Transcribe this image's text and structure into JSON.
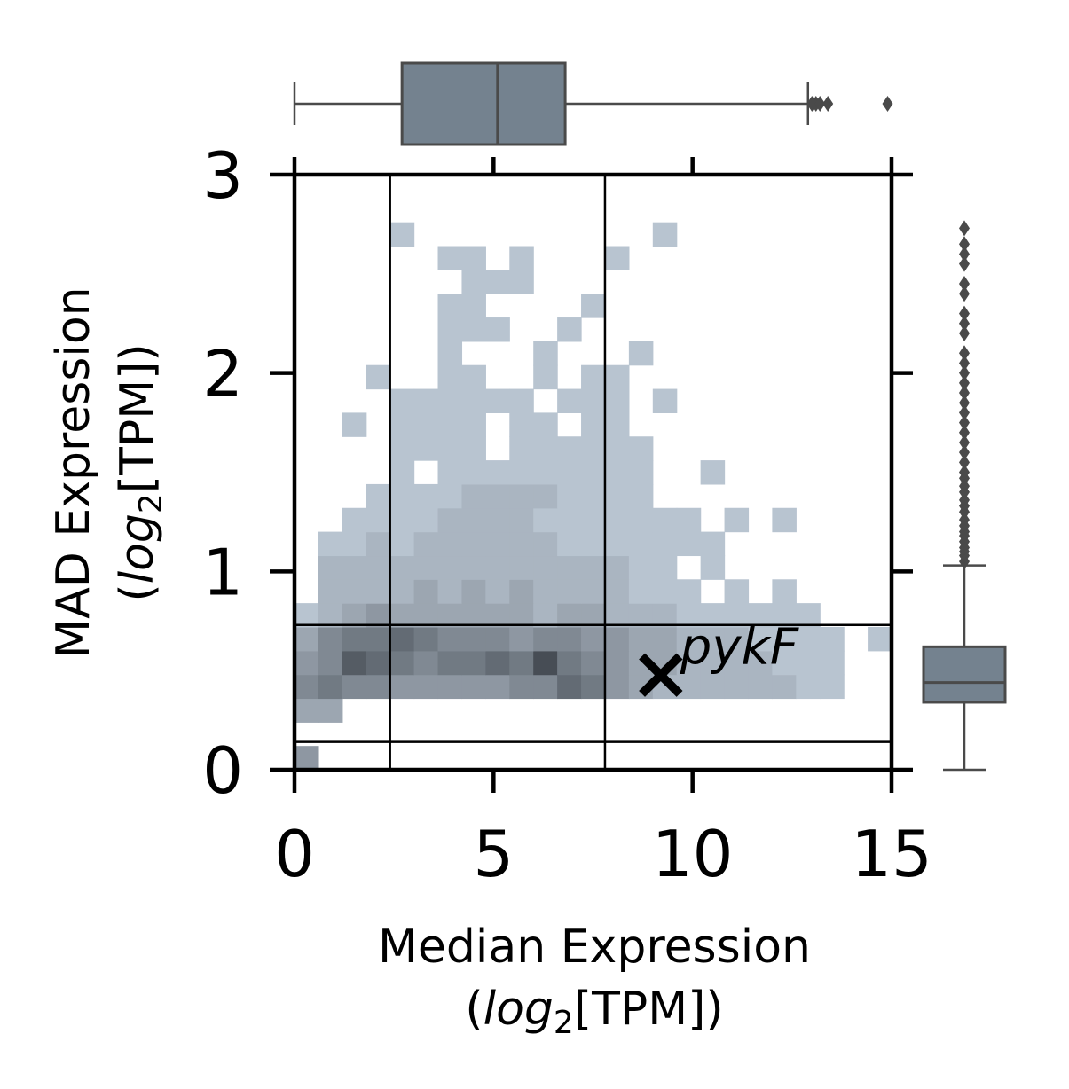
{
  "chart_data": {
    "type": "heatmap",
    "kind": "joint 2D histogram with marginal box plots",
    "title": "",
    "xlabel": {
      "line1": "Median Expression",
      "line2_prefix": "(",
      "line2_italic": "log",
      "line2_sub": "2",
      "line2_suffix": "[TPM])"
    },
    "ylabel": {
      "line1": "MAD Expression",
      "line2_prefix": "(",
      "line2_italic": "log",
      "line2_sub": "2",
      "line2_suffix": "[TPM])"
    },
    "xlim": [
      0,
      15
    ],
    "ylim": [
      0,
      3
    ],
    "xticks": [
      0,
      5,
      10,
      15
    ],
    "xtick_labels": [
      "0",
      "5",
      "10",
      "15"
    ],
    "yticks": [
      0,
      1,
      2,
      3
    ],
    "ytick_labels": [
      "0",
      "1",
      "2",
      "3"
    ],
    "grid": false,
    "colors": {
      "bin_light": "#b8c4d0",
      "bin_dark": "#474d55",
      "box": "#74828f",
      "box_edge": "#4a4a4a",
      "lines": "#000000"
    },
    "bins": {
      "x_width": 0.6,
      "y_width": 0.12,
      "note_levels": "count level 1 (lightest) .. 9 (darkest)",
      "cells": [
        [
          0.0,
          0.0,
          4
        ],
        [
          0.0,
          0.24,
          3
        ],
        [
          0.6,
          0.24,
          3
        ],
        [
          0.0,
          0.36,
          5
        ],
        [
          0.6,
          0.36,
          6
        ],
        [
          1.2,
          0.36,
          5
        ],
        [
          1.8,
          0.36,
          5
        ],
        [
          2.4,
          0.36,
          4
        ],
        [
          3.0,
          0.36,
          4
        ],
        [
          3.6,
          0.36,
          4
        ],
        [
          4.2,
          0.36,
          4
        ],
        [
          4.8,
          0.36,
          4
        ],
        [
          5.4,
          0.36,
          5
        ],
        [
          6.0,
          0.36,
          5
        ],
        [
          6.6,
          0.36,
          7
        ],
        [
          7.2,
          0.36,
          6
        ],
        [
          7.8,
          0.36,
          4
        ],
        [
          8.4,
          0.36,
          3
        ],
        [
          9.0,
          0.36,
          2
        ],
        [
          9.6,
          0.36,
          2
        ],
        [
          10.2,
          0.36,
          2
        ],
        [
          10.8,
          0.36,
          2
        ],
        [
          11.4,
          0.36,
          2
        ],
        [
          12.0,
          0.36,
          2
        ],
        [
          12.6,
          0.36,
          1
        ],
        [
          13.2,
          0.36,
          1
        ],
        [
          0.0,
          0.48,
          4
        ],
        [
          0.6,
          0.48,
          5
        ],
        [
          1.2,
          0.48,
          8
        ],
        [
          1.8,
          0.48,
          7
        ],
        [
          2.4,
          0.48,
          6
        ],
        [
          3.0,
          0.48,
          5
        ],
        [
          3.6,
          0.48,
          6
        ],
        [
          4.2,
          0.48,
          6
        ],
        [
          4.8,
          0.48,
          7
        ],
        [
          5.4,
          0.48,
          6
        ],
        [
          6.0,
          0.48,
          9
        ],
        [
          6.6,
          0.48,
          6
        ],
        [
          7.2,
          0.48,
          5
        ],
        [
          7.8,
          0.48,
          4
        ],
        [
          8.4,
          0.48,
          3
        ],
        [
          9.0,
          0.48,
          3
        ],
        [
          9.6,
          0.48,
          2
        ],
        [
          10.2,
          0.48,
          2
        ],
        [
          10.8,
          0.48,
          2
        ],
        [
          11.4,
          0.48,
          2
        ],
        [
          12.0,
          0.48,
          1
        ],
        [
          12.6,
          0.48,
          1
        ],
        [
          13.2,
          0.48,
          1
        ],
        [
          0.0,
          0.6,
          3
        ],
        [
          0.6,
          0.6,
          5
        ],
        [
          1.2,
          0.6,
          6
        ],
        [
          1.8,
          0.6,
          6
        ],
        [
          2.4,
          0.6,
          7
        ],
        [
          3.0,
          0.6,
          6
        ],
        [
          3.6,
          0.6,
          5
        ],
        [
          4.2,
          0.6,
          5
        ],
        [
          4.8,
          0.6,
          5
        ],
        [
          5.4,
          0.6,
          4
        ],
        [
          6.0,
          0.6,
          5
        ],
        [
          6.6,
          0.6,
          5
        ],
        [
          7.2,
          0.6,
          4
        ],
        [
          7.8,
          0.6,
          4
        ],
        [
          8.4,
          0.6,
          3
        ],
        [
          9.0,
          0.6,
          3
        ],
        [
          9.6,
          0.6,
          2
        ],
        [
          10.2,
          0.6,
          2
        ],
        [
          10.8,
          0.6,
          2
        ],
        [
          11.4,
          0.6,
          1
        ],
        [
          12.0,
          0.6,
          1
        ],
        [
          12.6,
          0.6,
          1
        ],
        [
          13.2,
          0.6,
          1
        ],
        [
          14.4,
          0.6,
          1
        ],
        [
          0.0,
          0.72,
          1
        ],
        [
          0.6,
          0.72,
          2
        ],
        [
          1.2,
          0.72,
          3
        ],
        [
          1.8,
          0.72,
          4
        ],
        [
          2.4,
          0.72,
          3
        ],
        [
          3.0,
          0.72,
          3
        ],
        [
          3.6,
          0.72,
          3
        ],
        [
          4.2,
          0.72,
          3
        ],
        [
          4.8,
          0.72,
          3
        ],
        [
          5.4,
          0.72,
          3
        ],
        [
          6.0,
          0.72,
          2
        ],
        [
          6.6,
          0.72,
          3
        ],
        [
          7.2,
          0.72,
          3
        ],
        [
          7.8,
          0.72,
          2
        ],
        [
          8.4,
          0.72,
          2
        ],
        [
          9.0,
          0.72,
          2
        ],
        [
          9.6,
          0.72,
          1
        ],
        [
          10.2,
          0.72,
          1
        ],
        [
          10.8,
          0.72,
          1
        ],
        [
          11.4,
          0.72,
          1
        ],
        [
          12.0,
          0.72,
          1
        ],
        [
          12.6,
          0.72,
          1
        ],
        [
          0.6,
          0.84,
          2
        ],
        [
          1.2,
          0.84,
          2
        ],
        [
          1.8,
          0.84,
          2
        ],
        [
          2.4,
          0.84,
          2
        ],
        [
          3.0,
          0.84,
          3
        ],
        [
          3.6,
          0.84,
          2
        ],
        [
          4.2,
          0.84,
          3
        ],
        [
          4.8,
          0.84,
          2
        ],
        [
          5.4,
          0.84,
          3
        ],
        [
          6.0,
          0.84,
          2
        ],
        [
          6.6,
          0.84,
          2
        ],
        [
          7.2,
          0.84,
          2
        ],
        [
          7.8,
          0.84,
          2
        ],
        [
          8.4,
          0.84,
          1
        ],
        [
          9.0,
          0.84,
          1
        ],
        [
          9.6,
          0.84,
          1
        ],
        [
          10.8,
          0.84,
          1
        ],
        [
          12.0,
          0.84,
          1
        ],
        [
          0.6,
          0.96,
          2
        ],
        [
          1.2,
          0.96,
          2
        ],
        [
          1.8,
          0.96,
          2
        ],
        [
          2.4,
          0.96,
          2
        ],
        [
          3.0,
          0.96,
          2
        ],
        [
          3.6,
          0.96,
          2
        ],
        [
          4.2,
          0.96,
          2
        ],
        [
          4.8,
          0.96,
          2
        ],
        [
          5.4,
          0.96,
          2
        ],
        [
          6.0,
          0.96,
          2
        ],
        [
          6.6,
          0.96,
          2
        ],
        [
          7.2,
          0.96,
          2
        ],
        [
          7.8,
          0.96,
          2
        ],
        [
          8.4,
          0.96,
          1
        ],
        [
          9.0,
          0.96,
          1
        ],
        [
          10.2,
          0.96,
          1
        ],
        [
          0.6,
          1.08,
          1
        ],
        [
          1.2,
          1.08,
          1
        ],
        [
          1.8,
          1.08,
          2
        ],
        [
          2.4,
          1.08,
          1
        ],
        [
          3.0,
          1.08,
          2
        ],
        [
          3.6,
          1.08,
          2
        ],
        [
          4.2,
          1.08,
          2
        ],
        [
          4.8,
          1.08,
          2
        ],
        [
          5.4,
          1.08,
          2
        ],
        [
          6.0,
          1.08,
          2
        ],
        [
          6.6,
          1.08,
          1
        ],
        [
          7.2,
          1.08,
          1
        ],
        [
          7.8,
          1.08,
          1
        ],
        [
          8.4,
          1.08,
          1
        ],
        [
          9.0,
          1.08,
          1
        ],
        [
          9.6,
          1.08,
          1
        ],
        [
          10.2,
          1.08,
          1
        ],
        [
          1.2,
          1.2,
          1
        ],
        [
          1.8,
          1.2,
          1
        ],
        [
          2.4,
          1.2,
          1
        ],
        [
          3.0,
          1.2,
          1
        ],
        [
          3.6,
          1.2,
          2
        ],
        [
          4.2,
          1.2,
          2
        ],
        [
          4.8,
          1.2,
          2
        ],
        [
          5.4,
          1.2,
          2
        ],
        [
          6.0,
          1.2,
          1
        ],
        [
          6.6,
          1.2,
          1
        ],
        [
          7.2,
          1.2,
          1
        ],
        [
          7.8,
          1.2,
          1
        ],
        [
          8.4,
          1.2,
          1
        ],
        [
          9.0,
          1.2,
          1
        ],
        [
          9.6,
          1.2,
          1
        ],
        [
          10.8,
          1.2,
          1
        ],
        [
          12.0,
          1.2,
          1
        ],
        [
          1.8,
          1.32,
          1
        ],
        [
          2.4,
          1.32,
          1
        ],
        [
          3.0,
          1.32,
          1
        ],
        [
          3.6,
          1.32,
          1
        ],
        [
          4.2,
          1.32,
          2
        ],
        [
          4.8,
          1.32,
          2
        ],
        [
          5.4,
          1.32,
          2
        ],
        [
          6.0,
          1.32,
          2
        ],
        [
          6.6,
          1.32,
          1
        ],
        [
          7.2,
          1.32,
          1
        ],
        [
          7.8,
          1.32,
          1
        ],
        [
          8.4,
          1.32,
          1
        ],
        [
          2.4,
          1.44,
          1
        ],
        [
          3.6,
          1.44,
          1
        ],
        [
          4.2,
          1.44,
          1
        ],
        [
          4.8,
          1.44,
          1
        ],
        [
          5.4,
          1.44,
          1
        ],
        [
          6.0,
          1.44,
          1
        ],
        [
          6.6,
          1.44,
          1
        ],
        [
          7.2,
          1.44,
          1
        ],
        [
          7.8,
          1.44,
          1
        ],
        [
          8.4,
          1.44,
          1
        ],
        [
          10.2,
          1.44,
          1
        ],
        [
          2.4,
          1.56,
          1
        ],
        [
          3.0,
          1.56,
          1
        ],
        [
          3.6,
          1.56,
          1
        ],
        [
          4.2,
          1.56,
          1
        ],
        [
          5.4,
          1.56,
          1
        ],
        [
          6.0,
          1.56,
          1
        ],
        [
          6.6,
          1.56,
          1
        ],
        [
          7.2,
          1.56,
          1
        ],
        [
          7.8,
          1.56,
          1
        ],
        [
          8.4,
          1.56,
          1
        ],
        [
          1.2,
          1.68,
          1
        ],
        [
          2.4,
          1.68,
          1
        ],
        [
          3.0,
          1.68,
          1
        ],
        [
          3.6,
          1.68,
          1
        ],
        [
          4.2,
          1.68,
          1
        ],
        [
          5.4,
          1.68,
          1
        ],
        [
          6.0,
          1.68,
          1
        ],
        [
          7.2,
          1.68,
          1
        ],
        [
          7.8,
          1.68,
          1
        ],
        [
          2.4,
          1.8,
          1
        ],
        [
          3.0,
          1.8,
          1
        ],
        [
          3.6,
          1.8,
          1
        ],
        [
          4.2,
          1.8,
          1
        ],
        [
          4.8,
          1.8,
          1
        ],
        [
          5.4,
          1.8,
          1
        ],
        [
          6.6,
          1.8,
          1
        ],
        [
          7.2,
          1.8,
          1
        ],
        [
          7.8,
          1.8,
          1
        ],
        [
          9.0,
          1.8,
          1
        ],
        [
          1.8,
          1.92,
          1
        ],
        [
          3.6,
          1.92,
          1
        ],
        [
          4.2,
          1.92,
          1
        ],
        [
          6.0,
          1.92,
          1
        ],
        [
          7.2,
          1.92,
          1
        ],
        [
          7.8,
          1.92,
          1
        ],
        [
          3.6,
          2.04,
          1
        ],
        [
          6.0,
          2.04,
          1
        ],
        [
          8.4,
          2.04,
          1
        ],
        [
          3.6,
          2.16,
          1
        ],
        [
          4.2,
          2.16,
          1
        ],
        [
          4.8,
          2.16,
          1
        ],
        [
          6.6,
          2.16,
          1
        ],
        [
          3.6,
          2.28,
          1
        ],
        [
          4.2,
          2.28,
          1
        ],
        [
          7.2,
          2.28,
          1
        ],
        [
          4.2,
          2.4,
          1
        ],
        [
          4.8,
          2.4,
          1
        ],
        [
          5.4,
          2.4,
          1
        ],
        [
          3.6,
          2.52,
          1
        ],
        [
          4.2,
          2.52,
          1
        ],
        [
          5.4,
          2.52,
          1
        ],
        [
          7.8,
          2.52,
          1
        ],
        [
          2.4,
          2.64,
          1
        ],
        [
          9.0,
          2.64,
          1
        ]
      ]
    },
    "vertical_lines_x": [
      2.4,
      7.8
    ],
    "horizontal_lines_y": [
      0.14,
      0.73
    ],
    "highlight": {
      "label": "pykF",
      "x": 9.2,
      "y": 0.49,
      "marker": "×"
    },
    "marginal_x_box": {
      "whisker_low": 0.0,
      "q1": 2.7,
      "median": 5.1,
      "q3": 6.8,
      "whisker_high": 12.9,
      "outliers": [
        13.0,
        13.1,
        13.2,
        13.4,
        14.9
      ]
    },
    "marginal_y_box": {
      "whisker_low": 0.0,
      "q1": 0.34,
      "median": 0.44,
      "q3": 0.62,
      "whisker_high": 1.03,
      "outliers": [
        1.05,
        1.08,
        1.1,
        1.12,
        1.15,
        1.18,
        1.2,
        1.23,
        1.26,
        1.3,
        1.33,
        1.36,
        1.4,
        1.43,
        1.47,
        1.5,
        1.55,
        1.6,
        1.65,
        1.7,
        1.75,
        1.8,
        1.85,
        1.9,
        1.95,
        2.0,
        2.05,
        2.1,
        2.2,
        2.25,
        2.3,
        2.4,
        2.45,
        2.55,
        2.6,
        2.65,
        2.73
      ]
    }
  }
}
